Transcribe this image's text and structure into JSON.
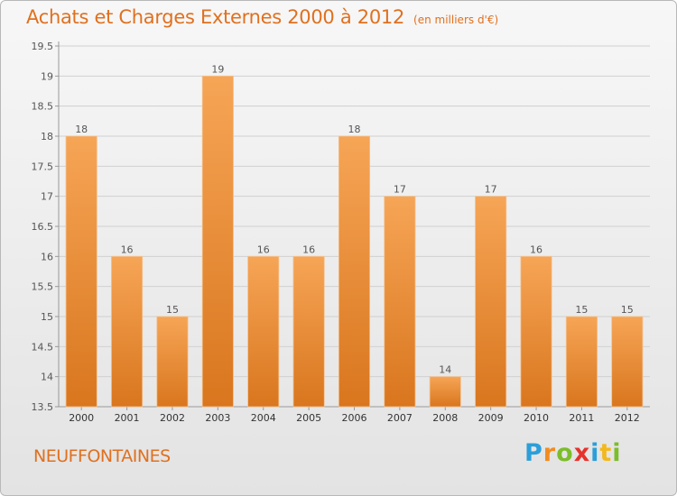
{
  "chart_data": {
    "type": "bar",
    "title": "Achats et Charges Externes 2000 à 2012",
    "subtitle": "(en milliers d'€)",
    "categories": [
      "2000",
      "2001",
      "2002",
      "2003",
      "2004",
      "2005",
      "2006",
      "2007",
      "2008",
      "2009",
      "2010",
      "2011",
      "2012"
    ],
    "values": [
      18,
      16,
      15,
      19,
      16,
      16,
      18,
      17,
      14,
      17,
      16,
      15,
      15
    ],
    "ylim": [
      13.5,
      19.5
    ],
    "yticks": [
      "13.5",
      "14",
      "14.5",
      "15",
      "15.5",
      "16",
      "16.5",
      "17",
      "17.5",
      "18",
      "18.5",
      "19",
      "19.5"
    ],
    "xlabel": "",
    "ylabel": "",
    "grid": true,
    "bar_color_light": "#f6a556",
    "bar_color_dark": "#d9761e"
  },
  "footer": {
    "place": "NEUFFONTAINES",
    "logo_letters": [
      "P",
      "r",
      "o",
      "x",
      "i",
      "t",
      "i"
    ],
    "logo_colors": [
      "#2b9fd9",
      "#f28c1e",
      "#7cbd2a",
      "#e6322b",
      "#2b9fd9",
      "#f2b81e",
      "#7cbd2a"
    ]
  }
}
